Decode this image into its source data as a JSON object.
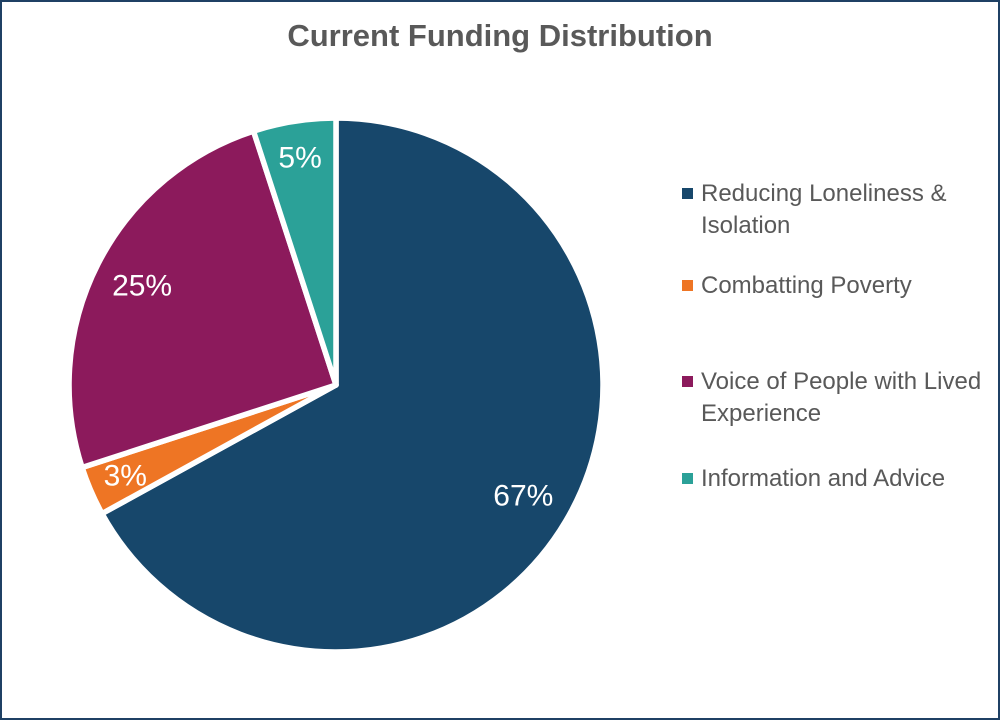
{
  "page": {
    "background_color": "#FFFFFF",
    "border_color": "#1F4064"
  },
  "chart_data": {
    "type": "pie",
    "title": "Current Funding Distribution",
    "title_color": "#595959",
    "legend_position": "right",
    "legend_text_color": "#595959",
    "data_label_color": "#FFFFFF",
    "start_angle_deg": 0,
    "direction": "clockwise",
    "series": [
      {
        "label": "Reducing Loneliness & Isolation",
        "value": 67,
        "percent_label": "67%",
        "color": "#17476B"
      },
      {
        "label": "Combatting Poverty",
        "value": 3,
        "percent_label": "3%",
        "color": "#EE7524"
      },
      {
        "label": "Voice of People with Lived Experience",
        "value": 25,
        "percent_label": "25%",
        "color": "#8C1A5C"
      },
      {
        "label": "Information and Advice",
        "value": 5,
        "percent_label": "5%",
        "color": "#2BA198"
      }
    ]
  }
}
